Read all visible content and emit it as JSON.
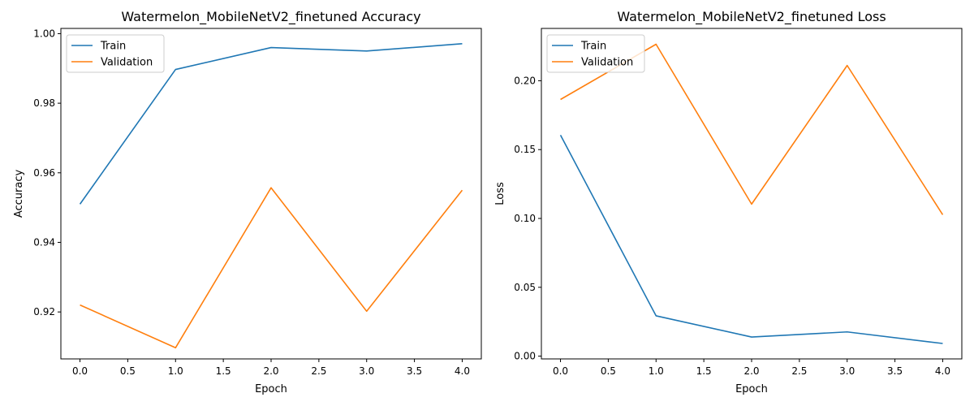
{
  "chart_data": [
    {
      "type": "line",
      "title": "Watermelon_MobileNetV2_finetuned Accuracy",
      "xlabel": "Epoch",
      "ylabel": "Accuracy",
      "x": [
        0,
        1,
        2,
        3,
        4
      ],
      "xlim": [
        -0.2,
        4.2
      ],
      "ylim": [
        0.9065,
        1.0015
      ],
      "xticks": [
        "0.0",
        "0.5",
        "1.0",
        "1.5",
        "2.0",
        "2.5",
        "3.0",
        "3.5",
        "4.0"
      ],
      "yticks": [
        "0.92",
        "0.94",
        "0.96",
        "0.98",
        "1.00"
      ],
      "grid": false,
      "legend": "upper-left",
      "series": [
        {
          "name": "Train",
          "color": "#1f77b4",
          "values": [
            0.951,
            0.9897,
            0.996,
            0.995,
            0.9971
          ]
        },
        {
          "name": "Validation",
          "color": "#ff7f0e",
          "values": [
            0.922,
            0.9097,
            0.9557,
            0.9202,
            0.955
          ]
        }
      ]
    },
    {
      "type": "line",
      "title": "Watermelon_MobileNetV2_finetuned Loss",
      "xlabel": "Epoch",
      "ylabel": "Loss",
      "x": [
        0,
        1,
        2,
        3,
        4
      ],
      "xlim": [
        -0.2,
        4.2
      ],
      "ylim": [
        -0.002,
        0.238
      ],
      "xticks": [
        "0.0",
        "0.5",
        "1.0",
        "1.5",
        "2.0",
        "2.5",
        "3.0",
        "3.5",
        "4.0"
      ],
      "yticks": [
        "0.00",
        "0.05",
        "0.10",
        "0.15",
        "0.20"
      ],
      "grid": false,
      "legend": "upper-left",
      "series": [
        {
          "name": "Train",
          "color": "#1f77b4",
          "values": [
            0.1605,
            0.0293,
            0.0139,
            0.0176,
            0.0092
          ]
        },
        {
          "name": "Validation",
          "color": "#ff7f0e",
          "values": [
            0.1864,
            0.2265,
            0.1104,
            0.2111,
            0.1027
          ]
        }
      ]
    }
  ]
}
